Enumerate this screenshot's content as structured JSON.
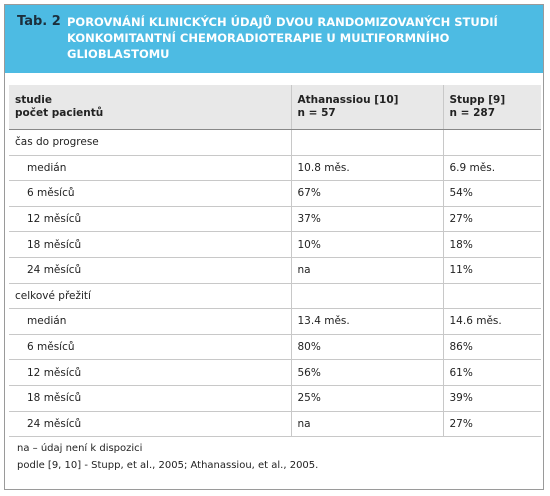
{
  "header": {
    "label": "Tab. 2",
    "title_lines": [
      "POROVNÁNÍ KLINICKÝCH ÚDAJŮ DVOU RANDOMIZOVANÝCH STUDIÍ",
      "KONKOMITANTNÍ CHEMORADIOTERAPIE U MULTIFORMNÍHO",
      "GLIOBLASTOMU"
    ]
  },
  "table": {
    "columns": [
      [
        "studie",
        "počet pacientů"
      ],
      [
        "Athanassiou [10]",
        "n = 57"
      ],
      [
        "Stupp [9]",
        "n = 287"
      ]
    ],
    "groups": [
      {
        "title": "čas do progrese",
        "rows": [
          [
            "medián",
            "10.8 měs.",
            "6.9 měs."
          ],
          [
            "6 měsíců",
            "67%",
            "54%"
          ],
          [
            "12 měsíců",
            "37%",
            "27%"
          ],
          [
            "18 měsíců",
            "10%",
            "18%"
          ],
          [
            "24 měsíců",
            "na",
            "11%"
          ]
        ]
      },
      {
        "title": "celkové přežití",
        "rows": [
          [
            "medián",
            "13.4 měs.",
            "14.6 měs."
          ],
          [
            "6 měsíců",
            "80%",
            "86%"
          ],
          [
            "12 měsíců",
            "56%",
            "61%"
          ],
          [
            "18 měsíců",
            "25%",
            "39%"
          ],
          [
            "24 měsíců",
            "na",
            "27%"
          ]
        ]
      }
    ]
  },
  "footnotes": [
    "na – údaj není k dispozici",
    "podle [9, 10] - Stupp, et al., 2005; Athanassiou, et al., 2005."
  ]
}
